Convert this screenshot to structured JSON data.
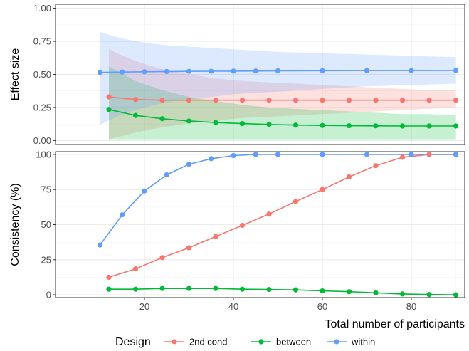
{
  "chart_data": [
    {
      "type": "line",
      "ylabel": "Effect size",
      "xlabel": "",
      "xlim": [
        0,
        92
      ],
      "ylim": [
        -0.03,
        1.03
      ],
      "y_ticks": [
        "0.00",
        "0.25",
        "0.50",
        "0.75",
        "1.00"
      ],
      "y_tick_values": [
        0,
        0.25,
        0.5,
        0.75,
        1.0
      ],
      "x_tick_values": [
        20,
        40,
        60,
        80
      ],
      "grid": true,
      "series": [
        {
          "name": "2nd cond",
          "color": "#F8766D",
          "x": [
            12,
            18,
            24,
            30,
            36,
            42,
            48,
            54,
            60,
            66,
            72,
            78,
            84,
            90
          ],
          "y": [
            0.33,
            0.31,
            0.305,
            0.305,
            0.305,
            0.305,
            0.305,
            0.305,
            0.305,
            0.305,
            0.305,
            0.305,
            0.305,
            0.305
          ],
          "ci_low": [
            0.01,
            0.06,
            0.1,
            0.13,
            0.15,
            0.17,
            0.18,
            0.19,
            0.2,
            0.21,
            0.22,
            0.23,
            0.24,
            0.25
          ],
          "ci_high": [
            0.69,
            0.6,
            0.54,
            0.5,
            0.47,
            0.45,
            0.44,
            0.43,
            0.42,
            0.41,
            0.4,
            0.39,
            0.38,
            0.38
          ]
        },
        {
          "name": "between",
          "color": "#00BA38",
          "x": [
            12,
            18,
            24,
            30,
            36,
            42,
            48,
            54,
            60,
            66,
            72,
            78,
            84,
            90
          ],
          "y": [
            0.235,
            0.19,
            0.165,
            0.148,
            0.136,
            0.128,
            0.122,
            0.117,
            0.114,
            0.112,
            0.111,
            0.11,
            0.11,
            0.11
          ],
          "ci_low": [
            0.01,
            0.01,
            0.01,
            0.01,
            0.01,
            0.01,
            0.01,
            0.01,
            0.01,
            0.01,
            0.01,
            0.01,
            0.01,
            0.01
          ],
          "ci_high": [
            0.56,
            0.45,
            0.38,
            0.33,
            0.3,
            0.27,
            0.25,
            0.24,
            0.23,
            0.22,
            0.21,
            0.2,
            0.2,
            0.19
          ]
        },
        {
          "name": "within",
          "color": "#619CFF",
          "x": [
            10,
            15,
            20,
            25,
            30,
            35,
            40,
            45,
            50,
            60,
            70,
            80,
            90
          ],
          "y": [
            0.515,
            0.518,
            0.52,
            0.522,
            0.523,
            0.524,
            0.525,
            0.526,
            0.527,
            0.528,
            0.529,
            0.529,
            0.53
          ],
          "ci_low": [
            0.12,
            0.2,
            0.25,
            0.29,
            0.31,
            0.33,
            0.35,
            0.36,
            0.37,
            0.39,
            0.41,
            0.42,
            0.43
          ],
          "ci_high": [
            0.82,
            0.77,
            0.74,
            0.72,
            0.71,
            0.7,
            0.69,
            0.68,
            0.67,
            0.66,
            0.65,
            0.64,
            0.63
          ]
        }
      ]
    },
    {
      "type": "line",
      "ylabel": "Consistency (%)",
      "xlabel": "Total number of participants",
      "xlim": [
        0,
        92
      ],
      "ylim": [
        -2,
        102
      ],
      "y_ticks": [
        "0",
        "25",
        "50",
        "75",
        "100"
      ],
      "y_tick_values": [
        0,
        25,
        50,
        75,
        100
      ],
      "x_ticks": [
        "20",
        "40",
        "60",
        "80"
      ],
      "x_tick_values": [
        20,
        40,
        60,
        80
      ],
      "grid": true,
      "series": [
        {
          "name": "2nd cond",
          "color": "#F8766D",
          "x": [
            12,
            18,
            24,
            30,
            36,
            42,
            48,
            54,
            60,
            66,
            72,
            78,
            84,
            90
          ],
          "y": [
            12.5,
            18.5,
            26.5,
            33.5,
            41.5,
            49.5,
            57.5,
            66.5,
            75,
            84,
            92,
            98,
            100,
            100
          ]
        },
        {
          "name": "between",
          "color": "#00BA38",
          "x": [
            12,
            18,
            24,
            30,
            36,
            42,
            48,
            54,
            60,
            66,
            72,
            78,
            84,
            90
          ],
          "y": [
            4,
            4,
            4.5,
            4.5,
            4.5,
            4,
            3.8,
            3.5,
            2.8,
            2.2,
            1.4,
            0.6,
            0.2,
            0
          ]
        },
        {
          "name": "within",
          "color": "#619CFF",
          "x": [
            10,
            15,
            20,
            25,
            30,
            35,
            40,
            45,
            50,
            60,
            70,
            80,
            90
          ],
          "y": [
            35.5,
            57,
            74,
            85.5,
            93,
            97,
            99.2,
            100,
            100,
            100,
            100,
            100,
            100
          ]
        }
      ]
    }
  ],
  "legend": {
    "title": "Design",
    "placement": "bottom",
    "items": [
      {
        "name": "2nd cond",
        "color": "#F8766D"
      },
      {
        "name": "between",
        "color": "#00BA38"
      },
      {
        "name": "within",
        "color": "#619CFF"
      }
    ]
  }
}
